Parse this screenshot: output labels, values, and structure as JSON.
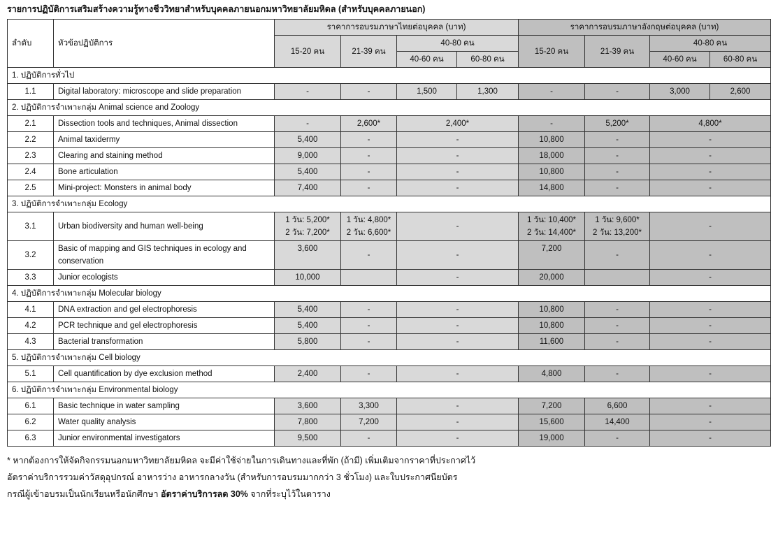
{
  "title": "รายการปฏิบัติการเสริมสร้างความรู้ทางชีววิทยาสำหรับบุคคลภายนอกมหาวิทยาลัยมหิดล (สำหรับบุคคลภายนอก)",
  "colors": {
    "thai_bg": "#d9d9d9",
    "eng_bg": "#bfbfbf"
  },
  "header": {
    "order": "ลำดับ",
    "topic": "หัวข้อปฏิบัติการ",
    "thai_group": "ราคาการอบรมภาษาไทยต่อบุคคล (บาท)",
    "eng_group": "ราคาการอบรมภาษาอังกฤษต่อบุคคล (บาท)",
    "g1": "15-20 คน",
    "g2": "21-39 คน",
    "g3": "40-80 คน",
    "g3a": "40-60 คน",
    "g3b": "60-80 คน"
  },
  "rows": [
    {
      "section": "1. ปฏิบัติการทั่วไป"
    },
    {
      "num": "1.1",
      "title": "Digital laboratory: microscope and slide preparation",
      "thai": [
        "-",
        "-",
        "1,500",
        "1,300"
      ],
      "eng": [
        "-",
        "-",
        "3,000",
        "2,600"
      ]
    },
    {
      "section": "2. ปฏิบัติการจำเพาะกลุ่ม Animal science and Zoology"
    },
    {
      "num": "2.1",
      "title": "Dissection tools and techniques, Animal dissection",
      "thai": [
        "-",
        "2,600*",
        "2,400*"
      ],
      "eng": [
        "-",
        "5,200*",
        "4,800*"
      ]
    },
    {
      "num": "2.2",
      "title": "Animal taxidermy",
      "thai": [
        "5,400",
        "-",
        "-"
      ],
      "eng": [
        "10,800",
        "-",
        "-"
      ]
    },
    {
      "num": "2.3",
      "title": "Clearing and staining method",
      "thai": [
        "9,000",
        "-",
        "-"
      ],
      "eng": [
        "18,000",
        "-",
        "-"
      ]
    },
    {
      "num": "2.4",
      "title": "Bone articulation",
      "thai": [
        "5,400",
        "-",
        "-"
      ],
      "eng": [
        "10,800",
        "-",
        "-"
      ]
    },
    {
      "num": "2.5",
      "title": "Mini-project: Monsters in animal body",
      "thai": [
        "7,400",
        "-",
        "-"
      ],
      "eng": [
        "14,800",
        "-",
        "-"
      ]
    },
    {
      "section": "3. ปฏิบัติการจำเพาะกลุ่ม Ecology"
    },
    {
      "num": "3.1",
      "title": "Urban biodiversity and human well-being",
      "thai": [
        "1 วัน: 5,200*\n2 วัน: 7,200*",
        "1 วัน: 4,800*\n2 วัน: 6,600*",
        "-"
      ],
      "eng": [
        "1 วัน: 10,400*\n2 วัน: 14,400*",
        "1 วัน: 9,600*\n2 วัน: 13,200*",
        "-"
      ]
    },
    {
      "num": "3.2",
      "title": "Basic of mapping and GIS techniques in ecology and conservation",
      "first_top": true,
      "thai": [
        "3,600",
        "-",
        "-"
      ],
      "eng": [
        "7,200",
        "-",
        "-"
      ]
    },
    {
      "num": "3.3",
      "title": "Junior ecologists",
      "thai": [
        "10,000",
        "",
        "-"
      ],
      "eng": [
        "20,000",
        "",
        "-"
      ]
    },
    {
      "section": "4. ปฏิบัติการจำเพาะกลุ่ม Molecular biology"
    },
    {
      "num": "4.1",
      "title": "DNA extraction and gel electrophoresis",
      "thai": [
        "5,400",
        "-",
        "-"
      ],
      "eng": [
        "10,800",
        "-",
        "-"
      ]
    },
    {
      "num": "4.2",
      "title": "PCR technique and gel electrophoresis",
      "thai": [
        "5,400",
        "-",
        "-"
      ],
      "eng": [
        "10,800",
        "-",
        "-"
      ]
    },
    {
      "num": "4.3",
      "title": "Bacterial transformation",
      "thai": [
        "5,800",
        "-",
        "-"
      ],
      "eng": [
        "11,600",
        "-",
        "-"
      ]
    },
    {
      "section": "5. ปฏิบัติการจำเพาะกลุ่ม Cell biology"
    },
    {
      "num": "5.1",
      "title": "Cell quantification by dye exclusion method",
      "thai": [
        "2,400",
        "-",
        "-"
      ],
      "eng": [
        "4,800",
        "-",
        "-"
      ]
    },
    {
      "section": "6. ปฏิบัติการจำเพาะกลุ่ม Environmental biology"
    },
    {
      "num": "6.1",
      "title": "Basic technique in water sampling",
      "thai": [
        "3,600",
        "3,300",
        "-"
      ],
      "eng": [
        "7,200",
        "6,600",
        "-"
      ]
    },
    {
      "num": "6.2",
      "title": "Water quality analysis",
      "thai": [
        "7,800",
        "7,200",
        "-"
      ],
      "eng": [
        "15,600",
        "14,400",
        "-"
      ]
    },
    {
      "num": "6.3",
      "title": "Junior environmental investigators",
      "thai": [
        "9,500",
        "-",
        "-"
      ],
      "eng": [
        "19,000",
        "-",
        "-"
      ]
    }
  ],
  "notes": {
    "line1": "* หากต้องการให้จัดกิจกรรมนอกมหาวิทยาลัยมหิดล จะมีค่าใช้จ่ายในการเดินทางและที่พัก (ถ้ามี) เพิ่มเติมจากราคาที่ประกาศไว้",
    "line2": "อัตราค่าบริการรวมค่าวัสดุอุปกรณ์ อาหารว่าง อาหารกลางวัน (สำหรับการอบรมมากกว่า 3 ชั่วโมง) และใบประกาศนียบัตร",
    "line3_pre": "กรณีผู้เข้าอบรมเป็นนักเรียนหรือนักศึกษา ",
    "line3_bold": "อัตราค่าบริการลด 30%",
    "line3_post": " จากที่ระบุไว้ในตาราง"
  }
}
